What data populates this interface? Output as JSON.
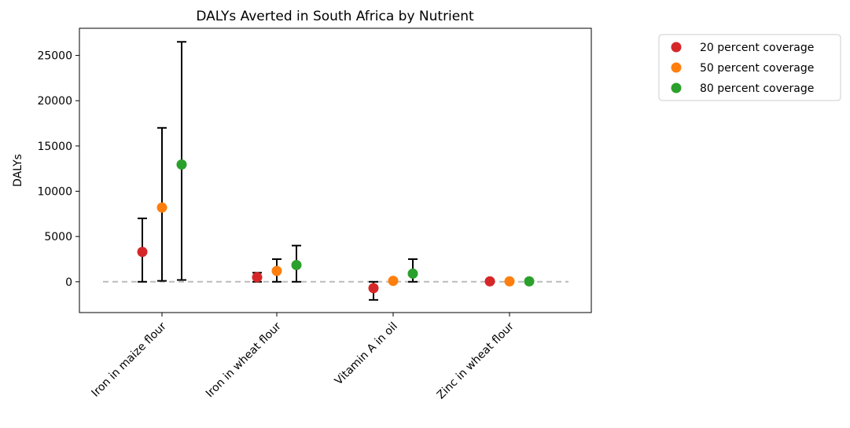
{
  "chart_data": {
    "type": "scatter",
    "title": "DALYs Averted in South Africa by Nutrient",
    "xlabel": "",
    "ylabel": "DALYs",
    "categories": [
      "Iron in maize flour",
      "Iron in wheat flour",
      "Vitamin A in oil",
      "Zinc in wheat flour"
    ],
    "ylim": [
      -3400,
      28000
    ],
    "yticks": [
      0,
      5000,
      10000,
      15000,
      20000,
      25000
    ],
    "grid": false,
    "legend_position": "outside-top-right",
    "reference_line": {
      "y": 0,
      "style": "dashed",
      "color": "#bbbbbb"
    },
    "series": [
      {
        "name": "20 percent coverage",
        "color": "#d62728",
        "values": [
          3300,
          500,
          -700,
          50
        ],
        "lower": [
          0,
          0,
          -2000,
          -100
        ],
        "upper": [
          7000,
          1000,
          0,
          200
        ]
      },
      {
        "name": "50 percent coverage",
        "color": "#ff7f0e",
        "values": [
          8200,
          1200,
          100,
          50
        ],
        "lower": [
          100,
          0,
          100,
          50
        ],
        "upper": [
          17000,
          2500,
          100,
          50
        ]
      },
      {
        "name": "80 percent coverage",
        "color": "#2ca02c",
        "values": [
          12950,
          1850,
          900,
          50
        ],
        "lower": [
          200,
          0,
          0,
          50
        ],
        "upper": [
          26500,
          4000,
          2500,
          50
        ]
      }
    ]
  }
}
